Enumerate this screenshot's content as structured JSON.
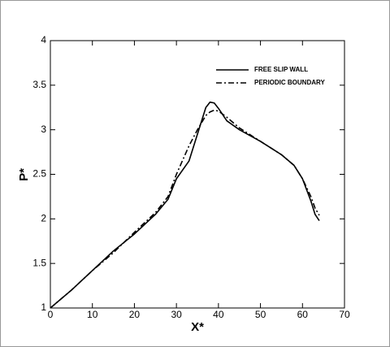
{
  "chart_data": {
    "type": "line",
    "xlabel": "X*",
    "ylabel": "P*",
    "xlim": [
      0,
      70
    ],
    "ylim": [
      1,
      4
    ],
    "xticks": [
      0,
      10,
      20,
      30,
      40,
      50,
      60,
      70
    ],
    "yticks": [
      1,
      1.5,
      2,
      2.5,
      3,
      3.5,
      4
    ],
    "legend": "upper-right",
    "series": [
      {
        "name": "FREE SLIP WALL",
        "color": "#000000",
        "dash": "solid",
        "x": [
          0,
          5,
          10,
          15,
          20,
          25,
          28,
          30,
          33,
          35,
          37,
          38,
          39,
          40,
          42,
          45,
          50,
          55,
          58,
          60,
          62,
          63,
          64
        ],
        "values": [
          1.0,
          1.2,
          1.42,
          1.64,
          1.83,
          2.05,
          2.22,
          2.45,
          2.65,
          2.95,
          3.25,
          3.31,
          3.3,
          3.24,
          3.1,
          3.0,
          2.87,
          2.72,
          2.6,
          2.45,
          2.2,
          2.05,
          1.98
        ]
      },
      {
        "name": "PERIODIC BOUNDARY",
        "color": "#000000",
        "dash": "dashdot",
        "x": [
          0,
          5,
          10,
          15,
          20,
          25,
          28,
          30,
          33,
          35,
          37,
          38,
          39,
          40,
          42,
          45,
          50,
          55,
          58,
          60,
          62,
          63,
          64
        ],
        "values": [
          1.0,
          1.2,
          1.42,
          1.62,
          1.85,
          2.07,
          2.25,
          2.5,
          2.82,
          3.0,
          3.16,
          3.2,
          3.22,
          3.21,
          3.14,
          3.02,
          2.87,
          2.72,
          2.6,
          2.45,
          2.25,
          2.12,
          2.04
        ]
      }
    ]
  }
}
